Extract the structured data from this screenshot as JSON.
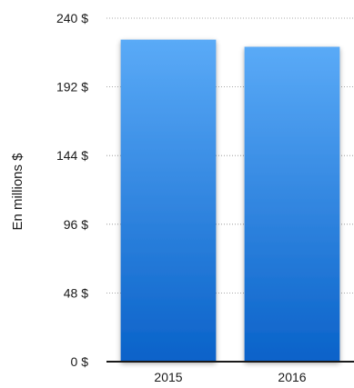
{
  "chart_data": {
    "type": "bar",
    "title": "",
    "xlabel": "",
    "ylabel": "En millions $",
    "categories": [
      "2015",
      "2016"
    ],
    "values": [
      225,
      220
    ],
    "ylim": [
      0,
      240
    ],
    "yticks": [
      0,
      48,
      96,
      144,
      192,
      240
    ],
    "ytick_labels": [
      "0 $",
      "48 $",
      "96 $",
      "144 $",
      "192 $",
      "240 $"
    ],
    "grid": true,
    "legend": "none",
    "bar_color_top": "#5aaaf7",
    "bar_color_bottom": "#0a62c9"
  }
}
